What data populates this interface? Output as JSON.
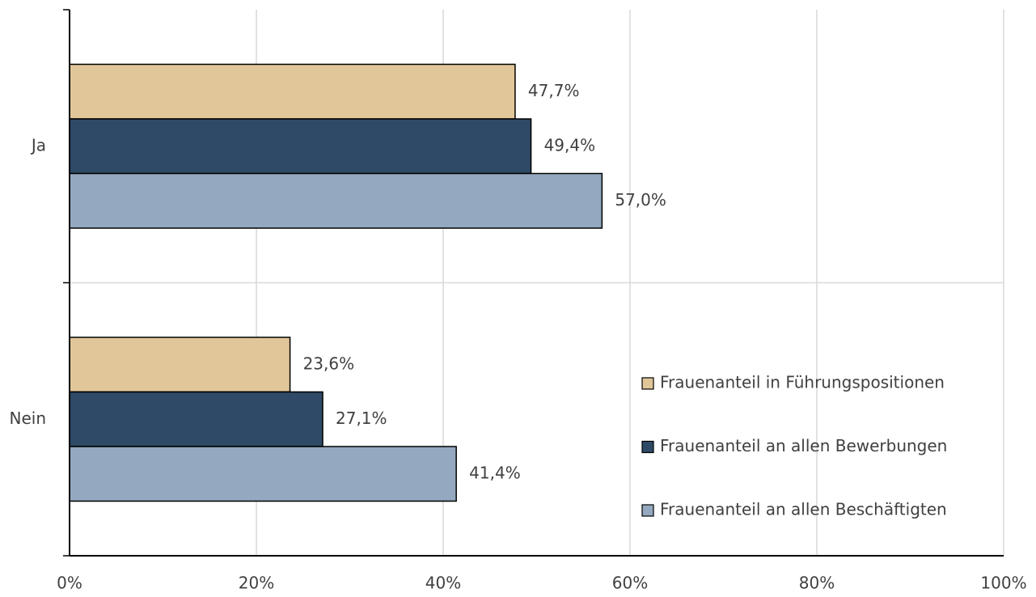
{
  "chart_data": {
    "type": "hbar",
    "categories": [
      "Ja",
      "Nein"
    ],
    "series": [
      {
        "name": "Frauenanteil in Führungspositionen",
        "color": "#e0c699",
        "values": [
          47.7,
          23.6
        ],
        "value_labels": [
          "47,7%",
          "23,6%"
        ]
      },
      {
        "name": "Frauenanteil an allen Bewerbungen",
        "color": "#2e4a66",
        "values": [
          49.4,
          27.1
        ],
        "value_labels": [
          "49,4%",
          "27,1%"
        ]
      },
      {
        "name": "Frauenanteil an allen Beschäftigten",
        "color": "#94a9bf",
        "values": [
          57.0,
          41.4
        ],
        "value_labels": [
          "57,0%",
          "41,4%"
        ]
      }
    ],
    "xlim": [
      0,
      100
    ],
    "xticks": [
      {
        "value": 0,
        "label": "0%"
      },
      {
        "value": 20,
        "label": "20%"
      },
      {
        "value": 40,
        "label": "40%"
      },
      {
        "value": 60,
        "label": "60%"
      },
      {
        "value": 80,
        "label": "80%"
      },
      {
        "value": 100,
        "label": "100%"
      }
    ],
    "grid": true,
    "legend": "right"
  }
}
